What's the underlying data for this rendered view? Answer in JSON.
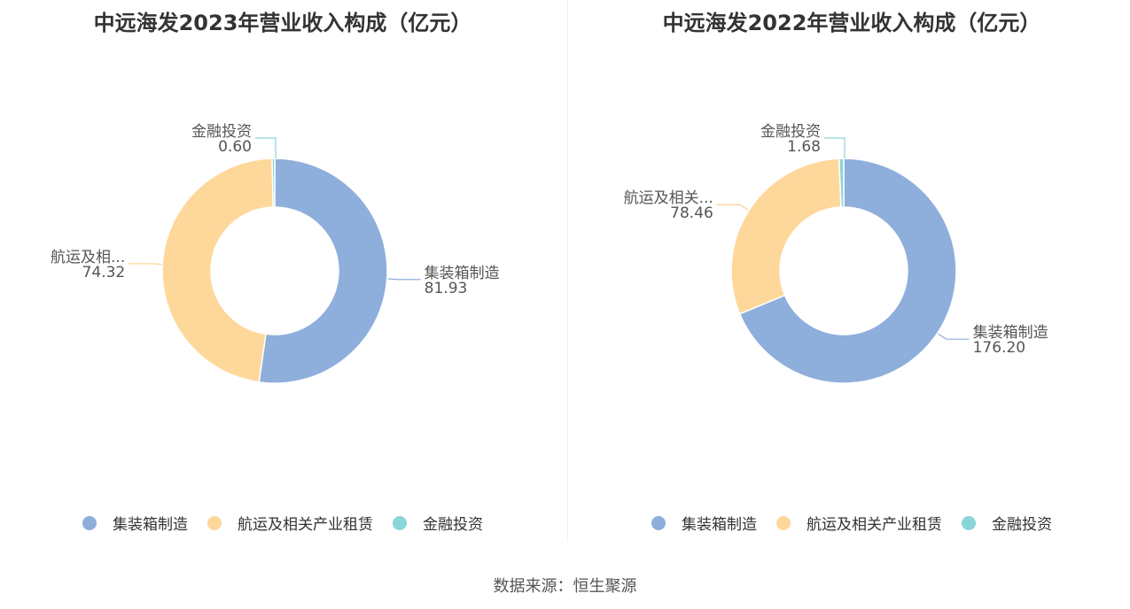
{
  "colors": [
    "#8eaedb",
    "#fed89b",
    "#8ad5d8"
  ],
  "legend_labels": [
    "集装箱制造",
    "航运及相关产业租赁",
    "金融投资"
  ],
  "source": "数据来源：恒生聚源",
  "chart_data": [
    {
      "type": "pie",
      "title": "中远海发2023年营业收入构成（亿元）",
      "categories": [
        "集装箱制造",
        "航运及相关产业租赁",
        "金融投资"
      ],
      "values": [
        81.93,
        74.32,
        0.6
      ],
      "value_labels": [
        "81.93",
        "74.32",
        "0.60"
      ],
      "slice_labels": [
        "集装箱制造",
        "航运及相...",
        "金融投资"
      ],
      "legend": "bottom"
    },
    {
      "type": "pie",
      "title": "中远海发2022年营业收入构成（亿元）",
      "categories": [
        "集装箱制造",
        "航运及相关产业租赁",
        "金融投资"
      ],
      "values": [
        176.2,
        78.46,
        1.68
      ],
      "value_labels": [
        "176.20",
        "78.46",
        "1.68"
      ],
      "slice_labels": [
        "集装箱制造",
        "航运及相关...",
        "金融投资"
      ],
      "legend": "bottom"
    }
  ]
}
